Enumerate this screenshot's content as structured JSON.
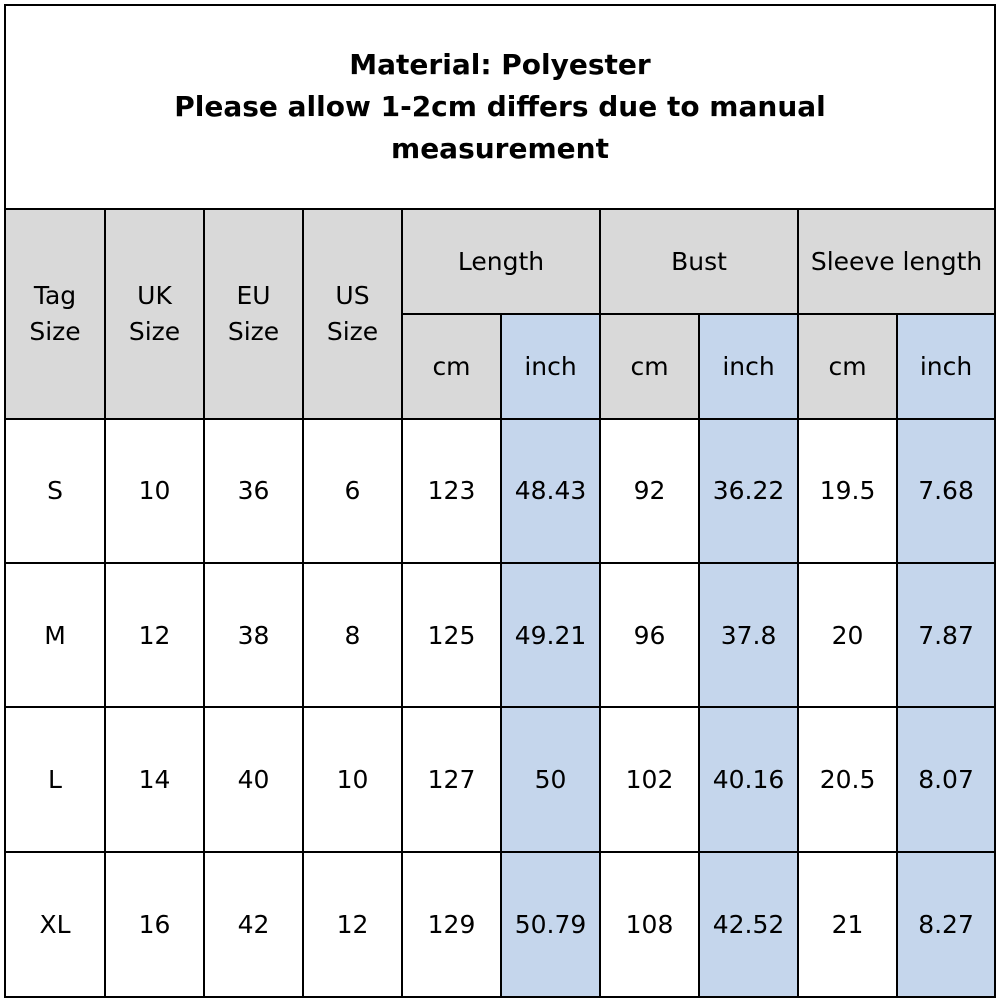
{
  "title": {
    "line1": "Material: Polyester",
    "line2": "Please allow 1-2cm differs due to manual",
    "line3": "measurement"
  },
  "headers": {
    "tag": [
      "Tag",
      "Size"
    ],
    "uk": [
      "UK",
      "Size"
    ],
    "eu": [
      "EU",
      "Size"
    ],
    "us": [
      "US",
      "Size"
    ],
    "length": "Length",
    "bust": "Bust",
    "sleeve": "Sleeve length",
    "cm": "cm",
    "inch": "inch"
  },
  "rows": [
    {
      "tag": "S",
      "uk": "10",
      "eu": "36",
      "us": "6",
      "length_cm": "123",
      "length_inch": "48.43",
      "bust_cm": "92",
      "bust_inch": "36.22",
      "sleeve_cm": "19.5",
      "sleeve_inch": "7.68"
    },
    {
      "tag": "M",
      "uk": "12",
      "eu": "38",
      "us": "8",
      "length_cm": "125",
      "length_inch": "49.21",
      "bust_cm": "96",
      "bust_inch": "37.8",
      "sleeve_cm": "20",
      "sleeve_inch": "7.87"
    },
    {
      "tag": "L",
      "uk": "14",
      "eu": "40",
      "us": "10",
      "length_cm": "127",
      "length_inch": "50",
      "bust_cm": "102",
      "bust_inch": "40.16",
      "sleeve_cm": "20.5",
      "sleeve_inch": "8.07"
    },
    {
      "tag": "XL",
      "uk": "16",
      "eu": "42",
      "us": "12",
      "length_cm": "129",
      "length_inch": "50.79",
      "bust_cm": "108",
      "bust_inch": "42.52",
      "sleeve_cm": "21",
      "sleeve_inch": "8.27"
    }
  ],
  "colors": {
    "header_bg": "#d9d9d9",
    "inch_bg": "#c5d6ec",
    "border": "#000000"
  }
}
